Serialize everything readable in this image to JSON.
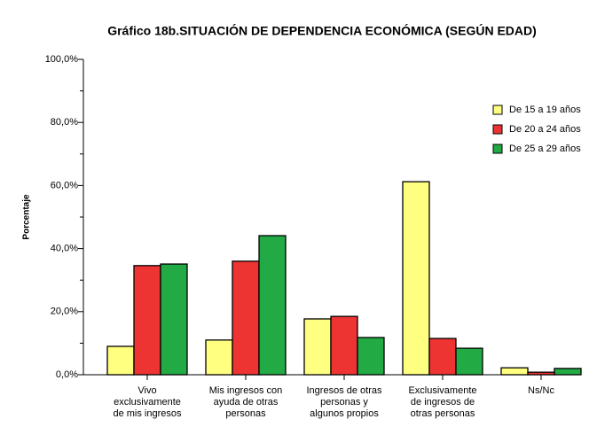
{
  "chart_data": {
    "type": "bar",
    "title": "Gráfico 18b.SITUACIÓN DE DEPENDENCIA ECONÓMICA (SEGÚN EDAD)",
    "y_label": "Porcentaje",
    "categories": [
      [
        "Vivo",
        "exclusivamente",
        "de mis ingresos"
      ],
      [
        "Mis ingresos con",
        "ayuda de otras",
        "personas"
      ],
      [
        "Ingresos de otras",
        "personas y",
        "algunos propios"
      ],
      [
        "Exclusivamente",
        "de ingresos de",
        "otras personas"
      ],
      [
        "Ns/Nc"
      ]
    ],
    "series": [
      {
        "name": "De 15 a 19 años",
        "color": "#ffff80",
        "values": [
          9.0,
          11.0,
          17.7,
          61.2,
          2.2
        ]
      },
      {
        "name": "De 20 a 24 años",
        "color": "#ee3333",
        "values": [
          34.6,
          36.0,
          18.5,
          11.5,
          0.8
        ]
      },
      {
        "name": "De 25 a 29 años",
        "color": "#22aa44",
        "values": [
          35.1,
          44.1,
          11.8,
          8.4,
          2.0
        ]
      }
    ],
    "ylim": [
      0,
      100
    ],
    "yticks": [
      {
        "value": 0,
        "label": "0,0%"
      },
      {
        "value": 20,
        "label": "20,0%"
      },
      {
        "value": 40,
        "label": "40,0%"
      },
      {
        "value": 60,
        "label": "60,0%"
      },
      {
        "value": 80,
        "label": "80,0%"
      },
      {
        "value": 100,
        "label": "100,0%"
      }
    ],
    "legend": "right"
  }
}
